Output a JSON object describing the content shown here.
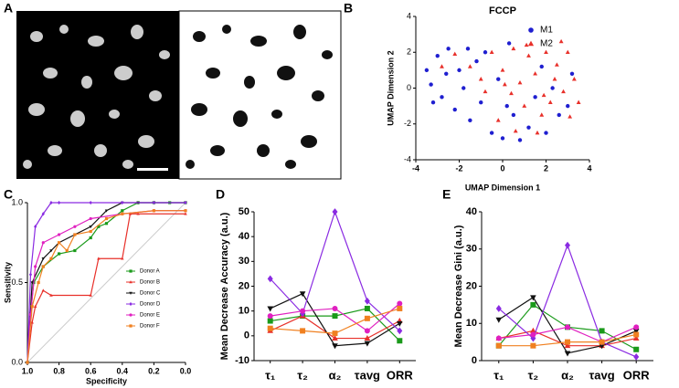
{
  "panel_labels": [
    "A",
    "B",
    "C",
    "D",
    "E"
  ],
  "chart_data": [
    {
      "type": "scatter",
      "title": "FCCP",
      "xlabel": "UMAP Dimension 1",
      "ylabel": "UMAP Dimension 2",
      "xlim": [
        -4,
        4
      ],
      "ylim": [
        -4,
        4
      ],
      "xticks": [
        -4,
        -2,
        0,
        2,
        4
      ],
      "yticks": [
        -4,
        -2,
        0,
        2,
        4
      ],
      "legend": "upper right",
      "series": [
        {
          "name": "M1",
          "color": "#1f1fd0",
          "marker": "circle",
          "x": [
            -3.5,
            -3.3,
            -3,
            -2.8,
            -2.5,
            -2.2,
            -2,
            -1.8,
            -1.5,
            -1.2,
            -1,
            -0.8,
            -0.5,
            -0.2,
            0,
            0.3,
            0.5,
            0.8,
            1.2,
            1.5,
            1.8,
            2,
            2.3,
            2.6,
            3,
            3.2,
            -3.2,
            -2.6,
            -1.6,
            0.2
          ],
          "values": [
            1,
            0.2,
            1.8,
            -0.5,
            2.2,
            -1.2,
            1,
            0,
            -1.8,
            1.5,
            -0.8,
            2,
            -2.5,
            0.5,
            -2.8,
            2.5,
            -1.5,
            -2.9,
            -2.2,
            -0.5,
            1.2,
            -2.5,
            0,
            -1.5,
            -1,
            0.8,
            -0.8,
            0.8,
            2.2,
            -1
          ]
        },
        {
          "name": "M2",
          "color": "#e8302a",
          "marker": "triangle",
          "x": [
            -1.5,
            -1,
            -0.5,
            0,
            0.5,
            0.8,
            1,
            1.2,
            1.5,
            1.8,
            2,
            2.2,
            2.5,
            2.8,
            3,
            3.3,
            3.5,
            1.6,
            0.6,
            -0.2,
            -2.2,
            -2.8,
            -0.8,
            2.4,
            3.1,
            1.1,
            0.1,
            1.9,
            2.7,
            0.4
          ],
          "values": [
            1.2,
            0.5,
            2,
            1,
            2.2,
            0.3,
            -1,
            1.8,
            0.8,
            -1.5,
            2,
            -0.8,
            1.3,
            -0.2,
            2,
            0.5,
            -0.8,
            -2.5,
            -2.4,
            -1.8,
            1.9,
            1.2,
            -0.2,
            0.5,
            -1.6,
            2.4,
            0.2,
            -0.4,
            2.6,
            -0.3
          ]
        }
      ]
    },
    {
      "type": "line",
      "xlabel": "Specificity",
      "ylabel": "Sensitivity",
      "xlim": [
        1,
        0
      ],
      "ylim": [
        0,
        1
      ],
      "xticks": [
        {
          "value": 1,
          "label": "1.0"
        },
        0.8,
        0.6,
        0.4,
        0.2,
        {
          "value": 0,
          "label": "0.0"
        }
      ],
      "yticks": [
        {
          "value": 0,
          "label": "0.0"
        },
        0.5,
        {
          "value": 1,
          "label": "1.0"
        }
      ],
      "legend": "lower right",
      "series": [
        {
          "name": "Donor A",
          "color": "#1a9a1a",
          "marker": "square",
          "x": [
            1,
            0.98,
            0.96,
            0.9,
            0.8,
            0.7,
            0.6,
            0.55,
            0.5,
            0.4,
            0.3,
            0.2,
            0.1,
            0
          ],
          "values": [
            0,
            0.3,
            0.5,
            0.6,
            0.68,
            0.7,
            0.78,
            0.85,
            0.87,
            0.95,
            1,
            1,
            1,
            1
          ]
        },
        {
          "name": "Donor B",
          "color": "#e8302a",
          "marker": "triangle",
          "x": [
            1,
            0.97,
            0.95,
            0.9,
            0.85,
            0.6,
            0.55,
            0.4,
            0.35,
            0.3,
            0
          ],
          "values": [
            0,
            0.25,
            0.35,
            0.45,
            0.42,
            0.42,
            0.65,
            0.65,
            0.93,
            0.93,
            0.93
          ]
        },
        {
          "name": "Donor C",
          "color": "#111111",
          "marker": "triangle-down",
          "x": [
            1,
            0.97,
            0.9,
            0.85,
            0.8,
            0.7,
            0.6,
            0.5,
            0.4,
            0.3,
            0.2,
            0
          ],
          "values": [
            0,
            0.5,
            0.65,
            0.7,
            0.75,
            0.8,
            0.85,
            0.95,
            1,
            1,
            1,
            1
          ]
        },
        {
          "name": "Donor D",
          "color": "#8a2be2",
          "marker": "diamond",
          "x": [
            1,
            0.98,
            0.95,
            0.9,
            0.85,
            0.8,
            0.6,
            0.4,
            0.2,
            0
          ],
          "values": [
            0,
            0.55,
            0.85,
            0.93,
            1,
            1,
            1,
            1,
            1,
            1
          ]
        },
        {
          "name": "Donor E",
          "color": "#e020c0",
          "marker": "circle",
          "x": [
            1,
            0.98,
            0.95,
            0.9,
            0.8,
            0.7,
            0.6,
            0.4,
            0.2,
            0
          ],
          "values": [
            0,
            0.3,
            0.6,
            0.75,
            0.8,
            0.85,
            0.9,
            0.93,
            0.95,
            0.95
          ]
        },
        {
          "name": "Donor F",
          "color": "#f08020",
          "marker": "square",
          "x": [
            1,
            0.97,
            0.93,
            0.9,
            0.85,
            0.8,
            0.75,
            0.7,
            0.6,
            0.5,
            0.4,
            0.2,
            0
          ],
          "values": [
            0,
            0.35,
            0.5,
            0.6,
            0.65,
            0.75,
            0.7,
            0.8,
            0.82,
            0.9,
            0.93,
            0.95,
            0.95
          ]
        }
      ]
    },
    {
      "type": "line",
      "ylabel": "Mean Decrease Accuracy (a.u.)",
      "categories": [
        "τ₁",
        "τ₂",
        "α₂",
        "τavg",
        "ORR"
      ],
      "ylim": [
        -10,
        50
      ],
      "yticks": [
        -10,
        0,
        10,
        20,
        30,
        40,
        50
      ],
      "series": [
        {
          "name": "Donor A",
          "color": "#1a9a1a",
          "marker": "square",
          "values": [
            6,
            8,
            8,
            11,
            -2
          ]
        },
        {
          "name": "Donor B",
          "color": "#e8302a",
          "marker": "triangle",
          "values": [
            2,
            8,
            -1,
            -1,
            6
          ]
        },
        {
          "name": "Donor C",
          "color": "#111111",
          "marker": "triangle-down",
          "values": [
            11,
            17,
            -4,
            -3,
            5
          ]
        },
        {
          "name": "Donor D",
          "color": "#8a2be2",
          "marker": "diamond",
          "values": [
            23,
            9,
            50,
            14,
            2
          ]
        },
        {
          "name": "Donor E",
          "color": "#e020c0",
          "marker": "circle",
          "values": [
            8,
            10,
            11,
            2,
            13
          ]
        },
        {
          "name": "Donor F",
          "color": "#f08020",
          "marker": "square",
          "values": [
            3,
            2,
            1,
            7,
            11
          ]
        }
      ]
    },
    {
      "type": "line",
      "ylabel": "Mean Decrease Gini (a.u.)",
      "categories": [
        "τ₁",
        "τ₂",
        "α₂",
        "τavg",
        "ORR"
      ],
      "ylim": [
        0,
        40
      ],
      "yticks": [
        0,
        10,
        20,
        30,
        40
      ],
      "series": [
        {
          "name": "Donor A",
          "color": "#1a9a1a",
          "marker": "square",
          "values": [
            4,
            15,
            9,
            8,
            3
          ]
        },
        {
          "name": "Donor B",
          "color": "#e8302a",
          "marker": "triangle",
          "values": [
            6,
            8,
            4,
            4,
            6
          ]
        },
        {
          "name": "Donor C",
          "color": "#111111",
          "marker": "triangle-down",
          "values": [
            11,
            17,
            2,
            4,
            8
          ]
        },
        {
          "name": "Donor D",
          "color": "#8a2be2",
          "marker": "diamond",
          "values": [
            14,
            6,
            31,
            5,
            1
          ]
        },
        {
          "name": "Donor E",
          "color": "#e020c0",
          "marker": "circle",
          "values": [
            6,
            7,
            9,
            5,
            9
          ]
        },
        {
          "name": "Donor F",
          "color": "#f08020",
          "marker": "square",
          "values": [
            4,
            4,
            5,
            5,
            7
          ]
        }
      ]
    }
  ]
}
